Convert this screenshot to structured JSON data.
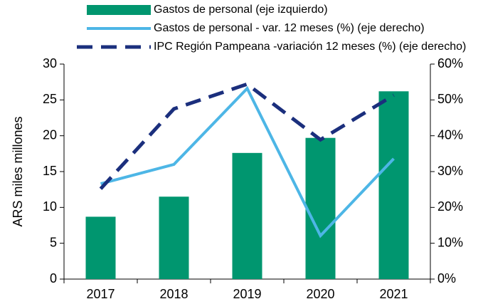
{
  "chart_data": {
    "type": "bar-line",
    "y_label": "ARS miles millones",
    "categories": [
      "2017",
      "2018",
      "2019",
      "2020",
      "2021"
    ],
    "series": [
      {
        "name": "Gastos de personal (eje izquierdo)",
        "type": "bar",
        "color": "#00966f",
        "values": [
          8.7,
          11.5,
          17.6,
          19.7,
          26.2
        ]
      },
      {
        "name": "Gastos de personal - var. 12 meses (%) (eje derecho)",
        "type": "line",
        "axis": "y2",
        "color": "#4db6e6",
        "values": [
          26.6,
          32.0,
          53.2,
          12.1,
          33.6
        ]
      },
      {
        "name": "IPC Región Pampeana -variación 12 meses (%) (eje derecho)",
        "type": "line",
        "dashed": true,
        "axis": "y2",
        "color": "#1b2f7d",
        "values": [
          25.2,
          47.5,
          54.4,
          38.9,
          51.3
        ]
      }
    ],
    "ylim": [
      0,
      30
    ],
    "yticks": [
      0,
      5,
      10,
      15,
      20,
      25,
      30
    ],
    "y2lim": [
      0,
      60
    ],
    "y2ticks": [
      {
        "value": 0,
        "label": "0%"
      },
      {
        "value": 10,
        "label": "10%"
      },
      {
        "value": 20,
        "label": "20%"
      },
      {
        "value": 30,
        "label": "30%"
      },
      {
        "value": 40,
        "label": "40%"
      },
      {
        "value": 50,
        "label": "50%"
      },
      {
        "value": 60,
        "label": "60%"
      }
    ],
    "legend": "top"
  }
}
